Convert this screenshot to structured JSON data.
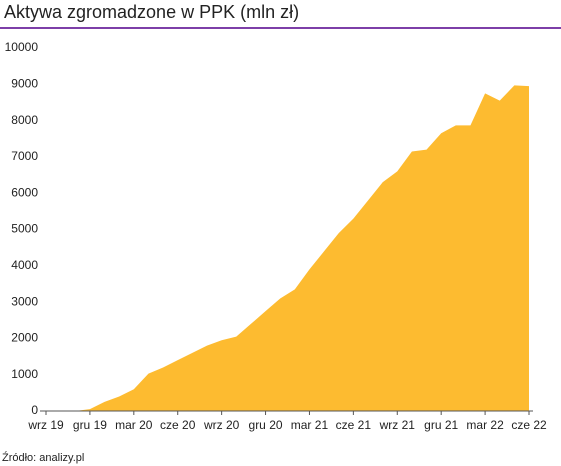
{
  "chart_data": {
    "type": "area",
    "title": "Aktywa zgromadzone w PPK (mln zł)",
    "categories": [
      "wrz 19",
      null,
      null,
      "gru 19",
      null,
      null,
      "mar 20",
      null,
      null,
      "cze 20",
      null,
      null,
      "wrz 20",
      null,
      null,
      "gru 20",
      null,
      null,
      "mar 21",
      null,
      null,
      "cze 21",
      null,
      null,
      "wrz 21",
      null,
      null,
      "gru 21",
      null,
      null,
      "mar 22",
      null,
      null,
      "cze 22"
    ],
    "values": [
      0,
      0,
      0,
      50,
      250,
      400,
      600,
      1030,
      1200,
      1400,
      1600,
      1800,
      1950,
      2050,
      2400,
      2750,
      3100,
      3350,
      3900,
      4400,
      4900,
      5300,
      5800,
      6300,
      6600,
      7150,
      7200,
      7650,
      7870,
      7870,
      8750,
      8550,
      8970,
      8950
    ],
    "color": "#fdbb30",
    "ylim": [
      0,
      10000
    ],
    "yticks": [
      0,
      1000,
      2000,
      3000,
      4000,
      5000,
      6000,
      7000,
      8000,
      9000,
      10000
    ],
    "source": "Źródło: analizy.pl"
  }
}
